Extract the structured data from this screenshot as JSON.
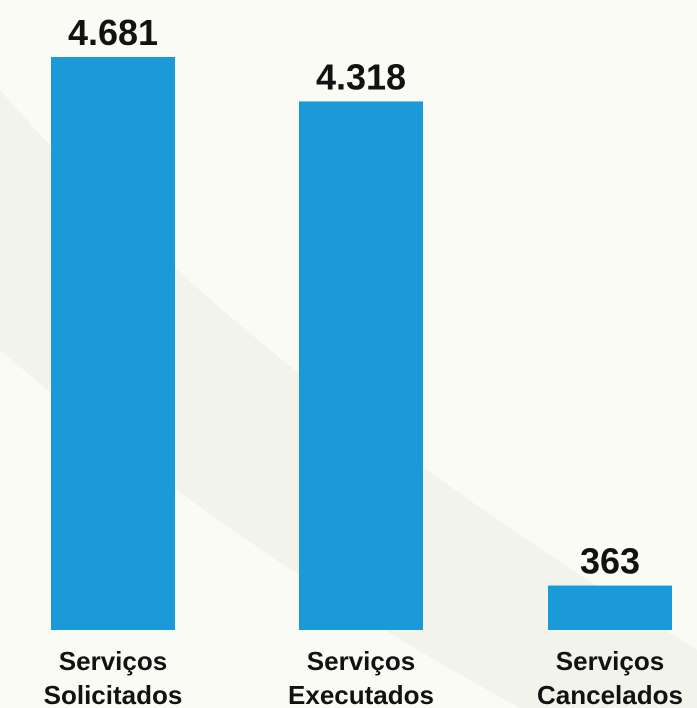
{
  "chart_data": {
    "type": "bar",
    "categories": [
      [
        "Serviços",
        "Solicitados"
      ],
      [
        "Serviços",
        "Executados"
      ],
      [
        "Serviços",
        "Cancelados"
      ]
    ],
    "values": [
      4681,
      4318,
      363
    ],
    "data_labels": [
      "4.681",
      "4.318",
      "363"
    ],
    "title": "",
    "xlabel": "",
    "ylabel": "",
    "grid": false,
    "legend": "none",
    "colors": {
      "bar": "#1b9ad9",
      "background": "#fbfbf6",
      "text": "#121212"
    }
  }
}
